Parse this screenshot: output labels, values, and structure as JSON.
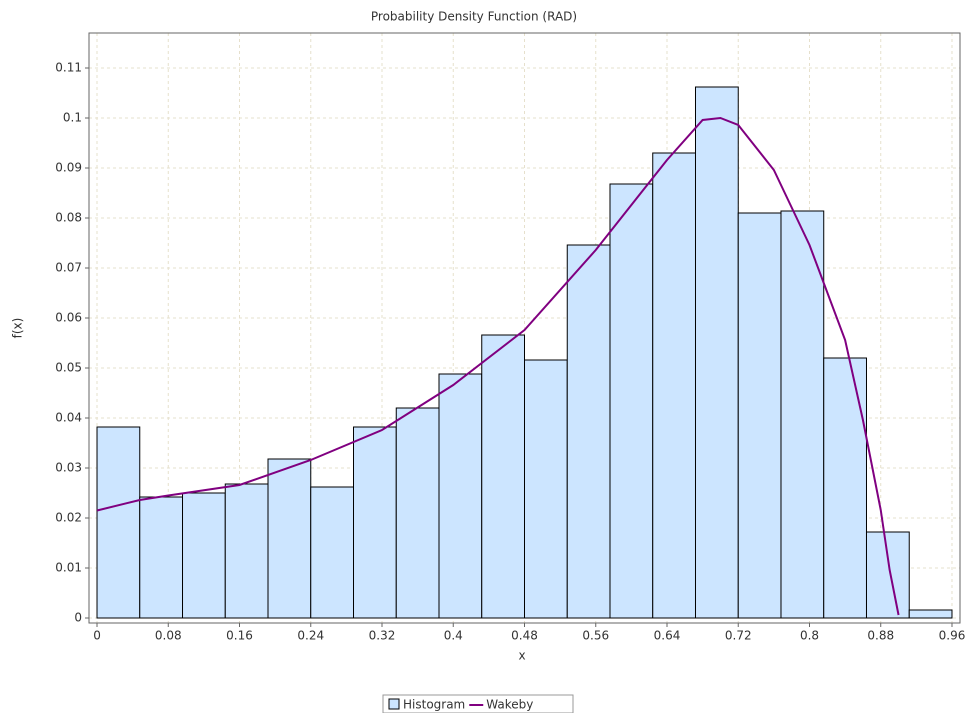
{
  "chart_data": {
    "type": "histogram",
    "title": "Probability Density Function (RAD)",
    "x_label": "x",
    "y_label": "f(x)",
    "name": "Histogram",
    "color": "#cce5ff",
    "edge_color": "#000000",
    "bins": [
      0,
      0.048,
      0.096,
      0.144,
      0.192,
      0.24,
      0.288,
      0.336,
      0.384,
      0.432,
      0.48,
      0.528,
      0.576,
      0.624,
      0.672,
      0.72,
      0.768,
      0.816,
      0.864,
      0.912,
      0.96
    ],
    "values": [
      0.0382,
      0.0242,
      0.025,
      0.0268,
      0.0318,
      0.0262,
      0.0382,
      0.042,
      0.0488,
      0.0566,
      0.0516,
      0.0746,
      0.0868,
      0.093,
      0.1062,
      0.081,
      0.0814,
      0.052,
      0.0172,
      0.0016
    ],
    "lines": [
      {
        "name": "Wakeby",
        "color": "#800080",
        "x": [
          0,
          0.048,
          0.08,
          0.16,
          0.24,
          0.32,
          0.4,
          0.48,
          0.56,
          0.64,
          0.68,
          0.7,
          0.72,
          0.76,
          0.8,
          0.84,
          0.86,
          0.88,
          0.89,
          0.9
        ],
        "values": [
          0.0215,
          0.0236,
          0.0245,
          0.0266,
          0.0316,
          0.0376,
          0.0466,
          0.0576,
          0.0736,
          0.0916,
          0.0996,
          0.1,
          0.0986,
          0.0896,
          0.0746,
          0.0556,
          0.0396,
          0.0216,
          0.0096,
          0.0006
        ]
      }
    ],
    "xlim": [
      -0.009,
      0.969
    ],
    "ylim": [
      -0.001,
      0.117
    ],
    "xticks": [
      0,
      0.08,
      0.16,
      0.24,
      0.32,
      0.4,
      0.48,
      0.56,
      0.64,
      0.72,
      0.8,
      0.88,
      0.96
    ],
    "yticks": [
      0,
      0.01,
      0.02,
      0.03,
      0.04,
      0.05,
      0.06,
      0.07,
      0.08,
      0.09,
      0.1,
      0.11
    ],
    "grid": true
  }
}
